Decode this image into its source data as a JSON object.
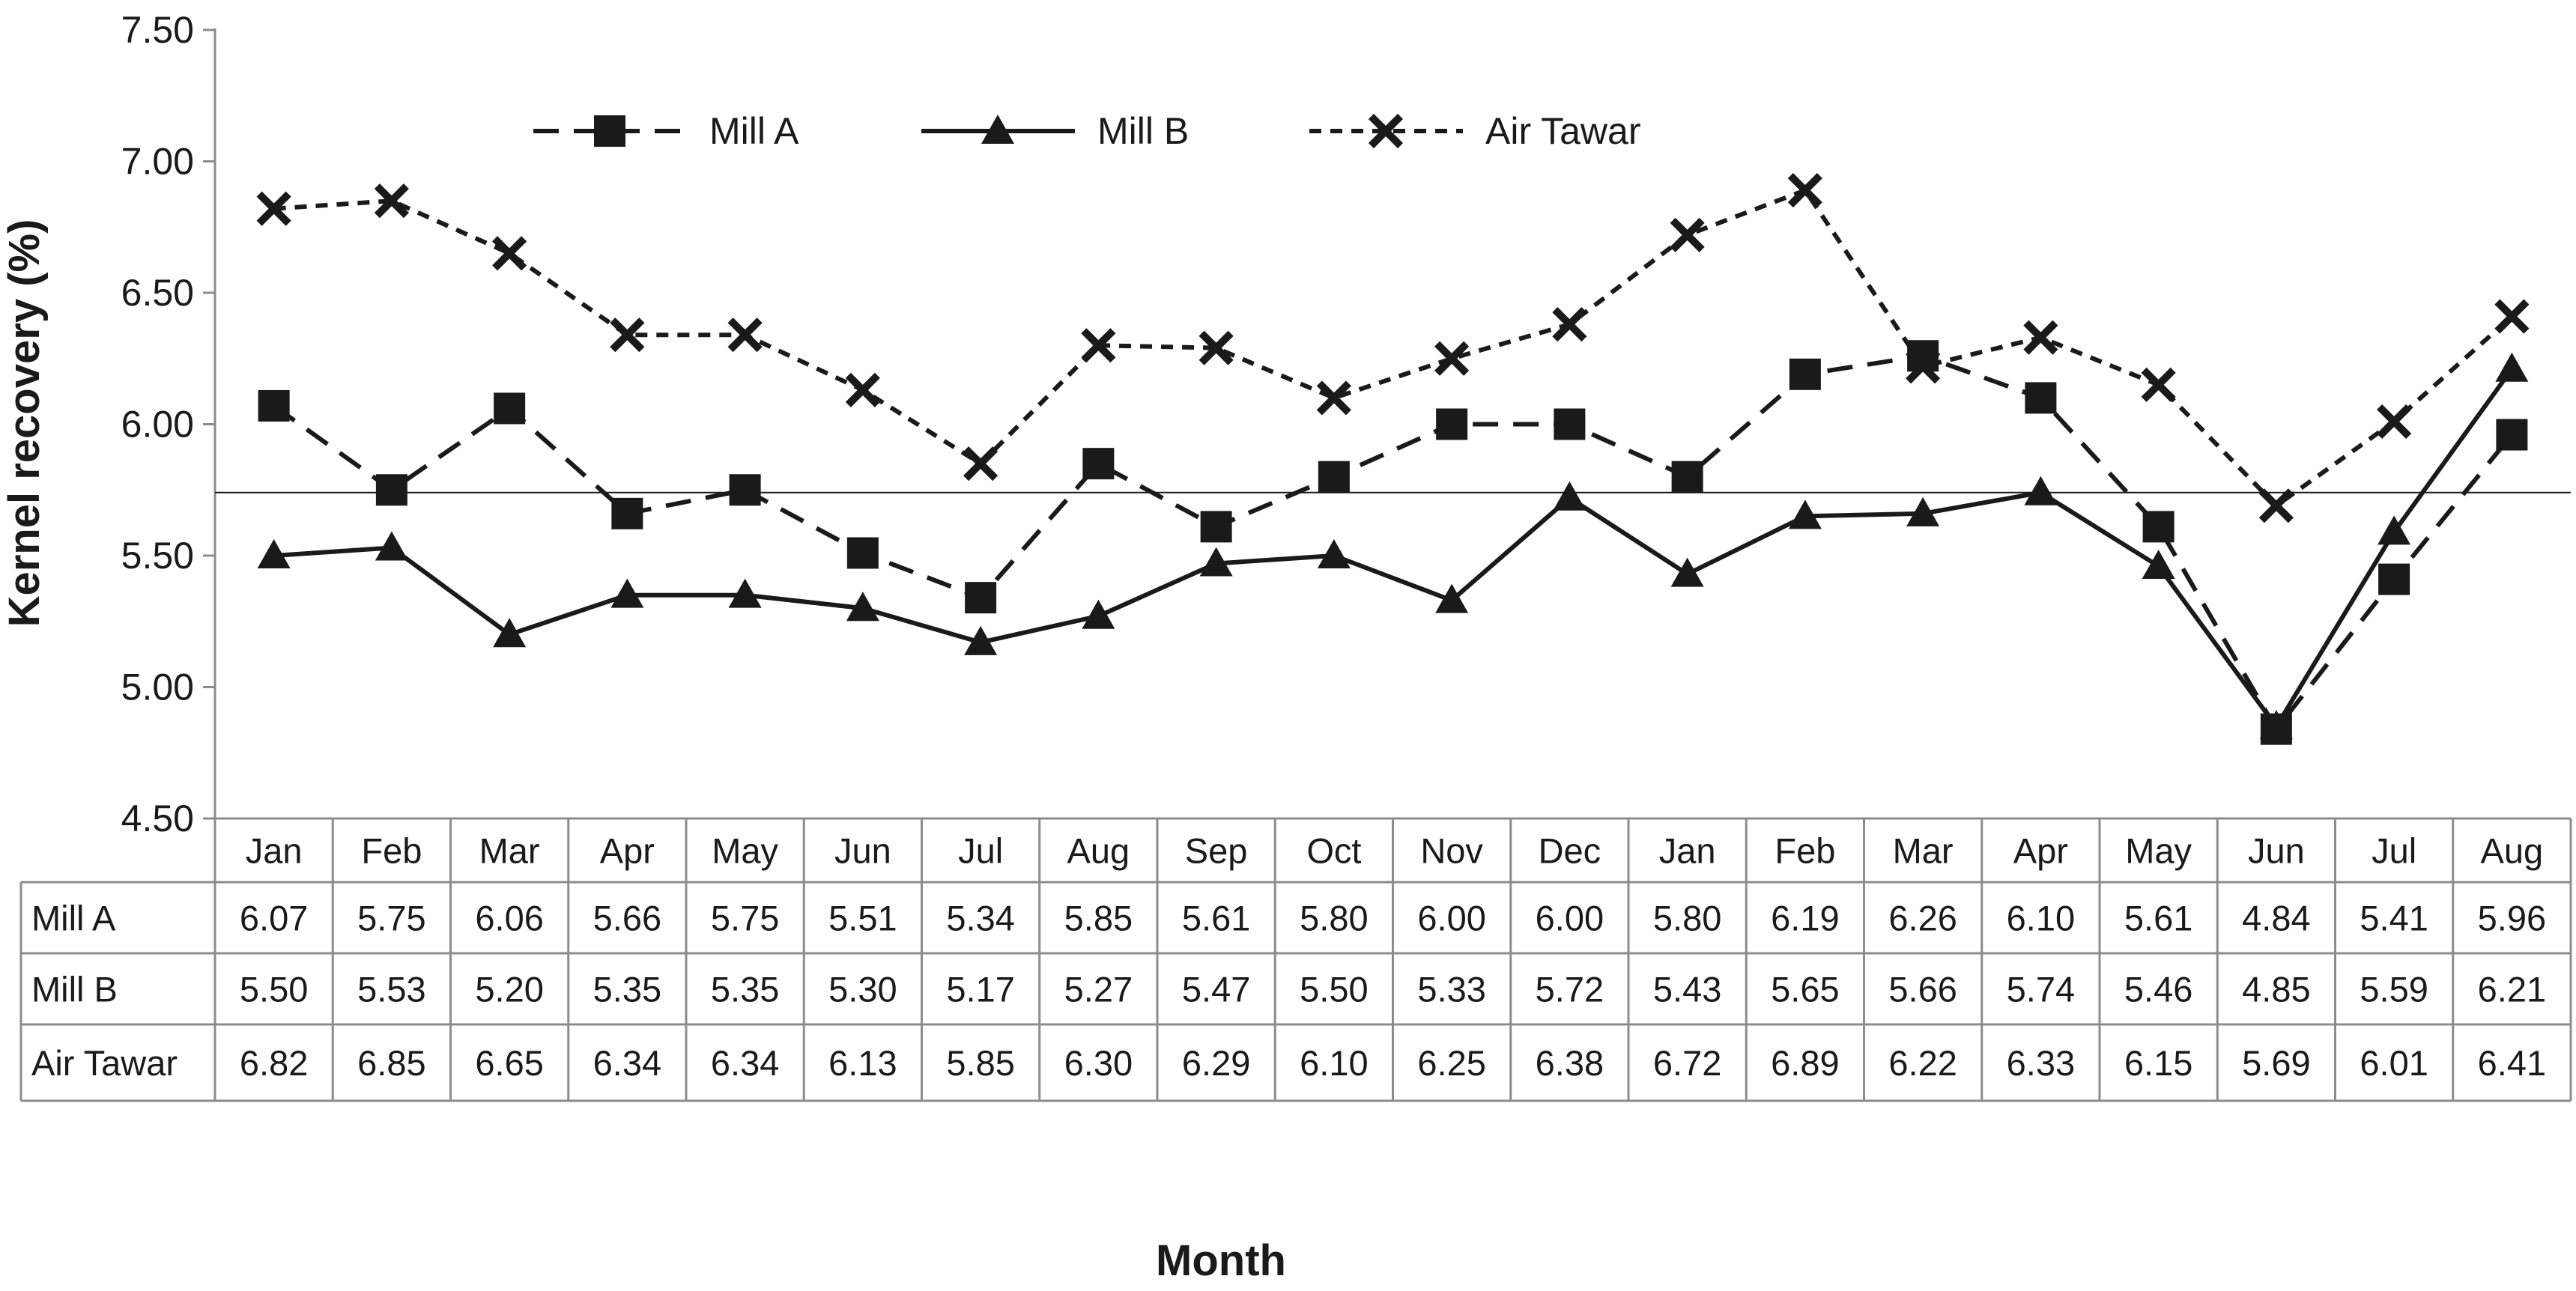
{
  "chart_data": {
    "type": "line",
    "title": "",
    "xlabel": "Month",
    "ylabel": "Kernel recovery (%)",
    "ylim": [
      4.5,
      7.5
    ],
    "y_ticks": [
      "4.50",
      "5.00",
      "5.50",
      "6.00",
      "6.50",
      "7.00",
      "7.50"
    ],
    "y_tick_values": [
      4.5,
      5.0,
      5.5,
      6.0,
      6.5,
      7.0,
      7.5
    ],
    "reference_line": 5.74,
    "legend_position": "top-center",
    "categories": [
      "Jan",
      "Feb",
      "Mar",
      "Apr",
      "May",
      "Jun",
      "Jul",
      "Aug",
      "Sep",
      "Oct",
      "Nov",
      "Dec",
      "Jan",
      "Feb",
      "Mar",
      "Apr",
      "May",
      "Jun",
      "Jul",
      "Aug"
    ],
    "series": [
      {
        "name": "Mill A",
        "marker": "square",
        "line_style": "long-dash",
        "values": [
          6.07,
          5.75,
          6.06,
          5.66,
          5.75,
          5.51,
          5.34,
          5.85,
          5.61,
          5.8,
          6.0,
          6.0,
          5.8,
          6.19,
          6.26,
          6.1,
          5.61,
          4.84,
          5.41,
          5.96
        ],
        "labels": [
          "6.07",
          "5.75",
          "6.06",
          "5.66",
          "5.75",
          "5.51",
          "5.34",
          "5.85",
          "5.61",
          "5.80",
          "6.00",
          "6.00",
          "5.80",
          "6.19",
          "6.26",
          "6.10",
          "5.61",
          "4.84",
          "5.41",
          "5.96"
        ]
      },
      {
        "name": "Mill B",
        "marker": "triangle",
        "line_style": "solid",
        "values": [
          5.5,
          5.53,
          5.2,
          5.35,
          5.35,
          5.3,
          5.17,
          5.27,
          5.47,
          5.5,
          5.33,
          5.72,
          5.43,
          5.65,
          5.66,
          5.74,
          5.46,
          4.85,
          5.59,
          6.21
        ],
        "labels": [
          "5.50",
          "5.53",
          "5.20",
          "5.35",
          "5.35",
          "5.30",
          "5.17",
          "5.27",
          "5.47",
          "5.50",
          "5.33",
          "5.72",
          "5.43",
          "5.65",
          "5.66",
          "5.74",
          "5.46",
          "4.85",
          "5.59",
          "6.21"
        ]
      },
      {
        "name": "Air Tawar",
        "marker": "x",
        "line_style": "short-dash",
        "values": [
          6.82,
          6.85,
          6.65,
          6.34,
          6.34,
          6.13,
          5.85,
          6.3,
          6.29,
          6.1,
          6.25,
          6.38,
          6.72,
          6.89,
          6.22,
          6.33,
          6.15,
          5.69,
          6.01,
          6.41
        ],
        "labels": [
          "6.82",
          "6.85",
          "6.65",
          "6.34",
          "6.34",
          "6.13",
          "5.85",
          "6.30",
          "6.29",
          "6.10",
          "6.25",
          "6.38",
          "6.72",
          "6.89",
          "6.22",
          "6.33",
          "6.15",
          "5.69",
          "6.01",
          "6.41"
        ]
      }
    ],
    "colors": {
      "ink": "#1a1a1a",
      "grid": "#8c8c8c",
      "background": "#ffffff"
    }
  }
}
